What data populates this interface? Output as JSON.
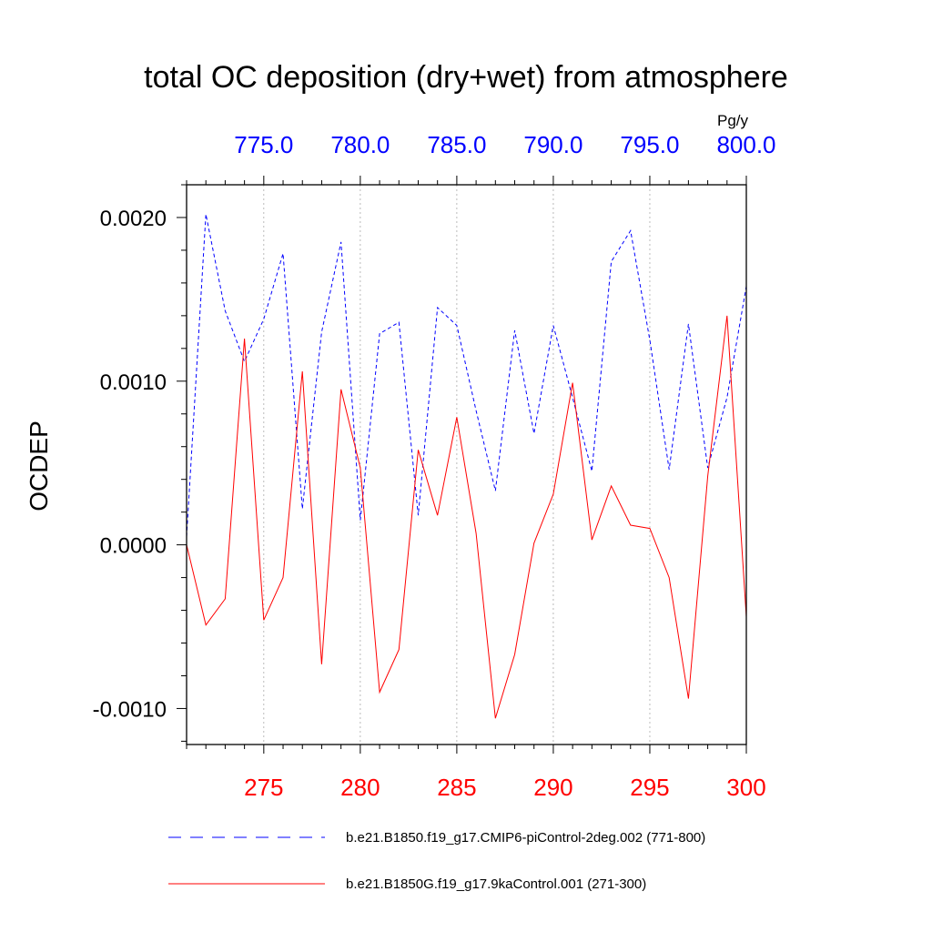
{
  "chart_data": {
    "type": "line",
    "title": "total OC deposition (dry+wet) from atmosphere",
    "ylabel": "OCDEP",
    "units": "Pg/y",
    "ylim": [
      -0.00122,
      0.0022
    ],
    "y_ticks": [
      -0.001,
      0.0,
      0.001,
      0.002
    ],
    "y_tick_labels": [
      "-0.0010",
      "0.0000",
      "0.0010",
      "0.0020"
    ],
    "bottom_axis": {
      "range": [
        271,
        300
      ],
      "ticks": [
        275,
        280,
        285,
        290,
        295,
        300
      ],
      "tick_labels": [
        "275",
        "280",
        "285",
        "290",
        "295",
        "300"
      ],
      "color": "#ff0000"
    },
    "top_axis": {
      "range": [
        771,
        800
      ],
      "ticks": [
        775,
        780,
        785,
        790,
        795,
        800
      ],
      "tick_labels": [
        "775.0",
        "780.0",
        "785.0",
        "790.0",
        "795.0",
        "800.0"
      ],
      "color": "#0000ff"
    },
    "series": [
      {
        "name": "b.e21.B1850.f19_g17.CMIP6-piControl-2deg.002 (771-800)",
        "color": "#0000ff",
        "style": "dashed",
        "axis": "top",
        "x": [
          771,
          772,
          773,
          774,
          775,
          776,
          777,
          778,
          779,
          780,
          781,
          782,
          783,
          784,
          785,
          786,
          787,
          788,
          789,
          790,
          791,
          792,
          793,
          794,
          795,
          796,
          797,
          798,
          799,
          800
        ],
        "values": [
          5e-05,
          0.00202,
          0.00143,
          0.00112,
          0.00138,
          0.00178,
          0.00022,
          0.0013,
          0.00185,
          0.00015,
          0.00129,
          0.00136,
          0.00018,
          0.00145,
          0.00134,
          0.00082,
          0.00033,
          0.00131,
          0.00068,
          0.00134,
          0.0009,
          0.00045,
          0.00173,
          0.00192,
          0.00125,
          0.00046,
          0.00135,
          0.00047,
          0.0009,
          0.00158
        ]
      },
      {
        "name": "b.e21.B1850G.f19_g17.9kaControl.001 (271-300)",
        "color": "#ff0000",
        "style": "solid",
        "axis": "bottom",
        "x": [
          271,
          272,
          273,
          274,
          275,
          276,
          277,
          278,
          279,
          280,
          281,
          282,
          283,
          284,
          285,
          286,
          287,
          288,
          289,
          290,
          291,
          292,
          293,
          294,
          295,
          296,
          297,
          298,
          299,
          300
        ],
        "values": [
          0.0,
          -0.00049,
          -0.00033,
          0.00126,
          -0.00046,
          -0.0002,
          0.00106,
          -0.00073,
          0.00095,
          0.00047,
          -0.0009,
          -0.00064,
          0.00058,
          0.00018,
          0.00078,
          7e-05,
          -0.00106,
          -0.00067,
          1e-05,
          0.00031,
          0.00099,
          3e-05,
          0.00036,
          0.00012,
          0.0001,
          -0.0002,
          -0.00094,
          0.00042,
          0.0014,
          -0.00044
        ]
      }
    ]
  }
}
